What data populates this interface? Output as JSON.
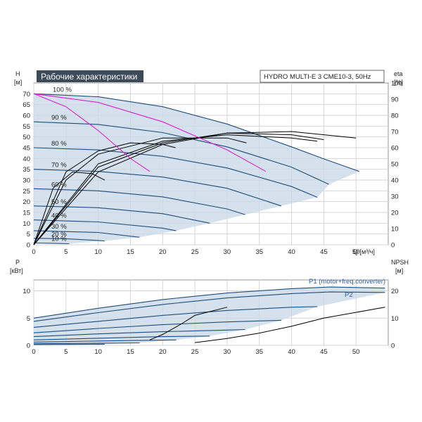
{
  "header": {
    "title": "Рабочие характеристики",
    "model": "HYDRO MULTI-E 3 CME10-3, 50Hz"
  },
  "axes": {
    "h_label": "H",
    "h_unit": "[м]",
    "eta_label": "eta",
    "eta_unit": "[%]",
    "q_label": "Q [м³/ч]",
    "p_label": "P",
    "p_unit": "[кВт]",
    "npsh_label": "NPSH",
    "npsh_unit": "[м]"
  },
  "colors": {
    "envelope_fill": "#cbd9e8",
    "curve_blue": "#1f4e7a",
    "curve_magenta": "#e020d8",
    "curve_black": "#000000",
    "title_bg": "#3d4a57"
  },
  "chart_data": [
    {
      "type": "line",
      "title": "Рабочие характеристики",
      "xlabel": "Q [м³/ч]",
      "ylabel": "H [м]",
      "y2label": "eta [%]",
      "xlim": [
        0,
        55
      ],
      "ylim": [
        0,
        75
      ],
      "y2lim": [
        0,
        100
      ],
      "xticks": [
        0,
        5,
        10,
        15,
        20,
        25,
        30,
        35,
        40,
        45,
        50
      ],
      "yticks": [
        0,
        5,
        10,
        15,
        20,
        25,
        30,
        35,
        40,
        45,
        50,
        55,
        60,
        65,
        70
      ],
      "y2ticks": [
        0,
        10,
        20,
        30,
        40,
        50,
        60,
        70,
        80,
        90,
        100
      ],
      "grid": true,
      "speed_labels": [
        "100 %",
        "90 %",
        "80 %",
        "70 %",
        "60 %",
        "50 %",
        "40 %",
        "30 %",
        "20 %",
        "10 %"
      ],
      "head_curves": [
        {
          "speed": "100 %",
          "x": [
            0,
            10,
            20,
            30,
            40,
            45,
            50.5
          ],
          "y": [
            70,
            68.6,
            64,
            56,
            45.4,
            39.8,
            34
          ]
        },
        {
          "speed": "90 %",
          "x": [
            0,
            10,
            20,
            30,
            40,
            45.8
          ],
          "y": [
            57,
            55.8,
            52,
            45.4,
            36,
            28
          ]
        },
        {
          "speed": "80 %",
          "x": [
            0,
            10,
            20,
            30,
            40,
            44
          ],
          "y": [
            45,
            44,
            41,
            35.6,
            27,
            22
          ]
        },
        {
          "speed": "70 %",
          "x": [
            0,
            10,
            20,
            30,
            38.4
          ],
          "y": [
            35,
            34,
            31.4,
            26.2,
            18
          ]
        },
        {
          "speed": "60 %",
          "x": [
            0,
            10,
            20,
            30,
            32.8
          ],
          "y": [
            26,
            25,
            22.2,
            16.6,
            14
          ]
        },
        {
          "speed": "50 %",
          "x": [
            0,
            10,
            20,
            27.3
          ],
          "y": [
            18,
            17.2,
            14.4,
            10
          ]
        },
        {
          "speed": "40 %",
          "x": [
            0,
            10,
            20,
            22.1
          ],
          "y": [
            11.5,
            10.6,
            7.7,
            6.5
          ]
        },
        {
          "speed": "30 %",
          "x": [
            0,
            10,
            16.4
          ],
          "y": [
            6.5,
            5.7,
            3.5
          ]
        },
        {
          "speed": "20 %",
          "x": [
            0,
            5,
            10,
            11
          ],
          "y": [
            3,
            2.8,
            2,
            1.8
          ]
        },
        {
          "speed": "10 %",
          "x": [
            0,
            3,
            5.5
          ],
          "y": [
            0.8,
            0.7,
            0.5
          ]
        }
      ],
      "efficiency_curves": [
        {
          "speed": "100 %",
          "x": [
            0,
            10,
            20,
            30,
            40,
            45,
            50
          ],
          "eta": [
            0,
            45,
            62,
            69,
            70,
            68,
            66
          ]
        },
        {
          "speed": "90 %",
          "x": [
            0,
            10,
            20,
            30,
            40,
            45
          ],
          "eta": [
            0,
            48,
            63,
            69,
            68,
            65
          ]
        },
        {
          "speed": "80 %",
          "x": [
            0,
            10,
            20,
            30,
            40,
            44
          ],
          "eta": [
            0,
            50,
            64,
            68,
            66,
            64
          ]
        },
        {
          "speed": "60 %",
          "x": [
            0,
            5,
            10,
            20,
            30,
            33
          ],
          "eta": [
            0,
            40,
            56,
            66,
            66,
            63
          ]
        },
        {
          "speed": "40 %",
          "x": [
            0,
            5,
            10,
            15,
            20,
            22
          ],
          "eta": [
            0,
            45,
            58,
            63,
            62,
            60
          ]
        },
        {
          "speed": "20 %",
          "x": [
            0,
            3,
            6,
            9,
            11
          ],
          "eta": [
            0,
            35,
            45,
            44,
            40
          ]
        }
      ],
      "system_curves": [
        {
          "x": [
            0,
            5,
            10,
            15,
            18
          ],
          "y": [
            70,
            64,
            53,
            40,
            34
          ]
        },
        {
          "x": [
            0,
            10,
            20,
            30,
            36
          ],
          "y": [
            70,
            66,
            57,
            44,
            34
          ]
        }
      ]
    },
    {
      "type": "line",
      "xlabel": "Q [м³/ч]",
      "ylabel": "P [кВт]",
      "y2label": "NPSH [м]",
      "xlim": [
        0,
        55
      ],
      "ylim": [
        0,
        12
      ],
      "y2lim": [
        0,
        24
      ],
      "xticks": [
        0,
        5,
        10,
        15,
        20,
        25,
        30,
        35,
        40,
        45,
        50
      ],
      "yticks": [
        0,
        5,
        10
      ],
      "y2ticks": [
        0,
        10,
        20
      ],
      "grid": true,
      "legend": [
        "P1 (motor+freq.converter)",
        "P2"
      ],
      "power_curves": [
        {
          "speed": "100 %",
          "x": [
            0,
            10,
            20,
            30,
            40,
            46,
            54.5
          ],
          "y": [
            5,
            6.8,
            8.4,
            9.6,
            10.4,
            10.7,
            10.5
          ]
        },
        {
          "speed": "90 %",
          "x": [
            0,
            10,
            20,
            30,
            40,
            46,
            54.5
          ],
          "y": [
            4.4,
            6,
            7.5,
            8.7,
            9.5,
            9.8,
            9.7
          ]
        },
        {
          "speed": "80 %",
          "x": [
            0,
            10,
            20,
            30,
            40,
            44
          ],
          "y": [
            3.3,
            4.4,
            5.5,
            6.4,
            7,
            7.1
          ]
        },
        {
          "speed": "70 %",
          "x": [
            0,
            10,
            20,
            30,
            38.4
          ],
          "y": [
            2.3,
            3.1,
            3.8,
            4.3,
            4.6
          ]
        },
        {
          "speed": "60 %",
          "x": [
            0,
            10,
            20,
            30,
            32.8
          ],
          "y": [
            1.6,
            2.1,
            2.5,
            2.8,
            2.9
          ]
        },
        {
          "speed": "50 %",
          "x": [
            0,
            10,
            20,
            27.3
          ],
          "y": [
            1,
            1.3,
            1.6,
            1.7
          ]
        },
        {
          "speed": "40 %",
          "x": [
            0,
            10,
            20,
            22.1
          ],
          "y": [
            0.6,
            0.8,
            0.95,
            1
          ]
        },
        {
          "speed": "30 %",
          "x": [
            0,
            10,
            16.4
          ],
          "y": [
            0.3,
            0.4,
            0.45
          ]
        },
        {
          "speed": "20 %",
          "x": [
            0,
            11
          ],
          "y": [
            0.15,
            0.2
          ]
        }
      ],
      "npsh_curves": [
        {
          "x": [
            18,
            20,
            23,
            25,
            30
          ],
          "y": [
            2,
            4,
            8,
            11,
            14
          ]
        },
        {
          "x": [
            25,
            30,
            35,
            40,
            45,
            54.5
          ],
          "y": [
            1,
            2.5,
            4.5,
            7,
            10,
            14
          ]
        }
      ]
    }
  ]
}
